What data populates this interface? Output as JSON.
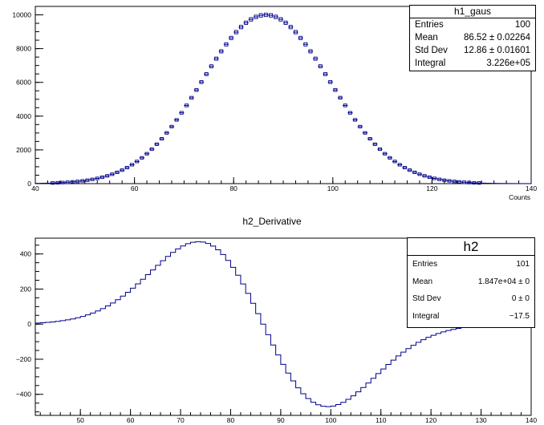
{
  "chart_data": [
    {
      "type": "histogram",
      "name": "h1_gaus",
      "xlabel": "Counts",
      "ylabel": "",
      "xlim": [
        40,
        140
      ],
      "ylim": [
        0,
        10500
      ],
      "xticks": [
        "40",
        "60",
        "80",
        "100",
        "120",
        "140"
      ],
      "yticks": [
        "0",
        "2000",
        "4000",
        "6000",
        "8000",
        "10000"
      ],
      "gaussian": {
        "peak": 10000,
        "mean": 86.5,
        "sigma": 12.9
      },
      "bin_width": 1,
      "style": "markers-with-errors",
      "color": "#00008b",
      "stats": [
        {
          "key": "Entries",
          "value": "100"
        },
        {
          "key": "Mean",
          "value": "86.52 ± 0.02264"
        },
        {
          "key": "Std Dev",
          "value": "12.86 ± 0.01601"
        },
        {
          "key": "Integral",
          "value": "3.226e+05"
        }
      ]
    },
    {
      "type": "histogram",
      "name": "h2",
      "title": "h2_Derivative",
      "xlabel": "",
      "ylabel": "",
      "xlim": [
        41,
        140
      ],
      "ylim": [
        -520,
        490
      ],
      "xticks": [
        "50",
        "60",
        "70",
        "80",
        "90",
        "100",
        "110",
        "120",
        "130",
        "140"
      ],
      "yticks": [
        "−400",
        "−200",
        "0",
        "200",
        "400"
      ],
      "derivative_of": "h1_gaus",
      "bin_width": 1,
      "style": "step",
      "color": "#00008b",
      "stats": [
        {
          "key": "Entries",
          "value": "101"
        },
        {
          "key": "Mean",
          "value": "1.847e+04 ±      0"
        },
        {
          "key": "Std Dev",
          "value": "0 ±      0"
        },
        {
          "key": "Integral",
          "value": "−17.5"
        }
      ]
    }
  ]
}
